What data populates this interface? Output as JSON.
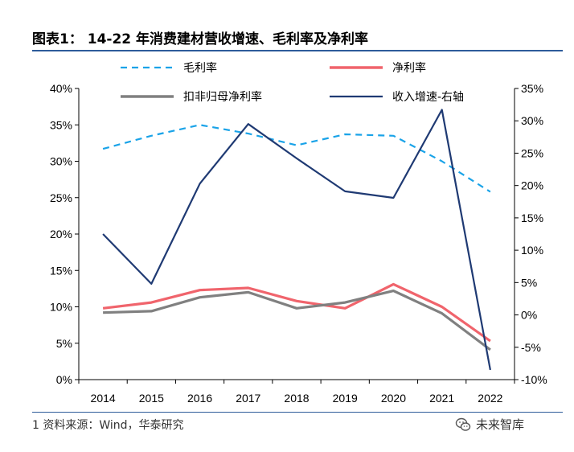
{
  "title": "图表1： 14-22 年消费建材营收增速、毛利率及净利率",
  "source": "1 资料来源：Wind，华泰研究",
  "watermark": {
    "text": "未来智库",
    "icon": "wechat-icon"
  },
  "chart_data": {
    "type": "line",
    "x": [
      "2014",
      "2015",
      "2016",
      "2017",
      "2018",
      "2019",
      "2020",
      "2021",
      "2022"
    ],
    "series": [
      {
        "name": "毛利率",
        "axis": "left",
        "style": "dashed",
        "color": "#1aa3e8",
        "values": [
          31.7,
          33.5,
          35.0,
          33.8,
          32.2,
          33.7,
          33.5,
          30.0,
          25.8
        ]
      },
      {
        "name": "净利率",
        "axis": "left",
        "style": "solid",
        "color": "#f0646c",
        "values": [
          9.8,
          10.6,
          12.3,
          12.6,
          10.8,
          9.8,
          13.1,
          10.0,
          5.3
        ]
      },
      {
        "name": "扣非归母净利率",
        "axis": "left",
        "style": "solid",
        "color": "#808080",
        "values": [
          9.2,
          9.4,
          11.3,
          12.0,
          9.8,
          10.6,
          12.2,
          9.1,
          4.1
        ]
      },
      {
        "name": "收入增速-右轴",
        "axis": "right",
        "style": "solid",
        "color": "#1f3a73",
        "values": [
          12.5,
          4.8,
          20.3,
          29.5,
          24.2,
          19.1,
          18.1,
          31.7,
          -8.5
        ]
      }
    ],
    "y_left": {
      "min": 0,
      "max": 40,
      "step": 5,
      "format": "percent"
    },
    "y_right": {
      "min": -10,
      "max": 35,
      "step": 5,
      "format": "percent"
    },
    "legend": {
      "position": "top",
      "columns": 2
    },
    "grid": false
  }
}
